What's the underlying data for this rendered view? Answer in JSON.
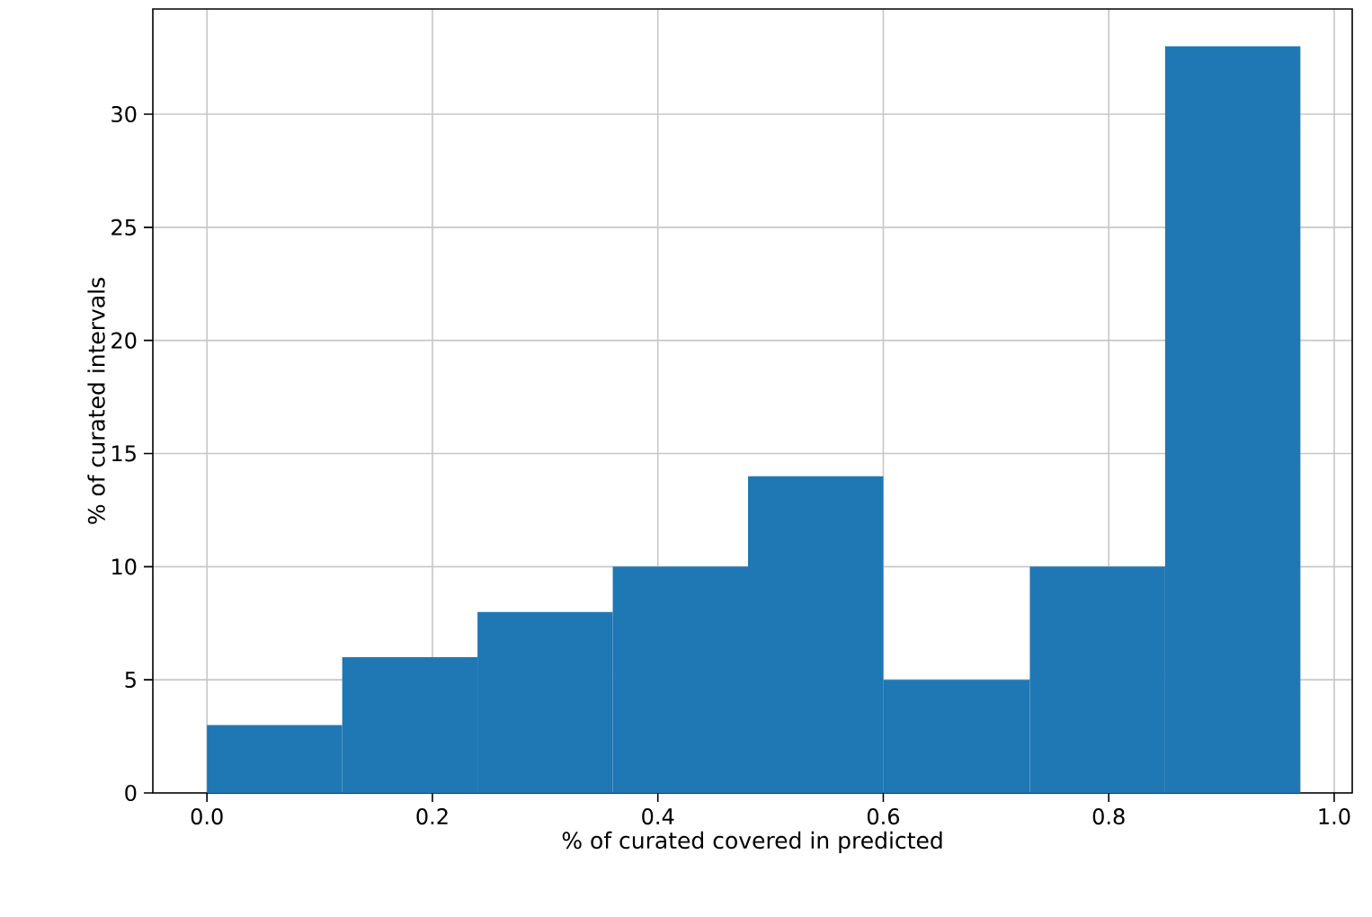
{
  "chart_data": {
    "type": "histogram",
    "xlabel": "% of curated covered in predicted",
    "ylabel": "% of curated intervals",
    "bins": [
      0,
      0.12,
      0.24,
      0.36,
      0.48,
      0.6,
      0.73,
      0.85,
      0.97
    ],
    "values": [
      3,
      6,
      8,
      10,
      14,
      5,
      10,
      33
    ],
    "color": "#1f77b4",
    "xlim": [
      -0.048,
      1.016
    ],
    "ylim": [
      0,
      34.65
    ],
    "xticks": [
      {
        "value": 0,
        "label": "0.0"
      },
      {
        "value": 0.2,
        "label": "0.2"
      },
      {
        "value": 0.4,
        "label": "0.4"
      },
      {
        "value": 0.6,
        "label": "0.6"
      },
      {
        "value": 0.8,
        "label": "0.8"
      },
      {
        "value": 1,
        "label": "1.0"
      }
    ],
    "yticks": [
      0,
      5,
      10,
      15,
      20,
      25,
      30
    ],
    "grid": true
  }
}
